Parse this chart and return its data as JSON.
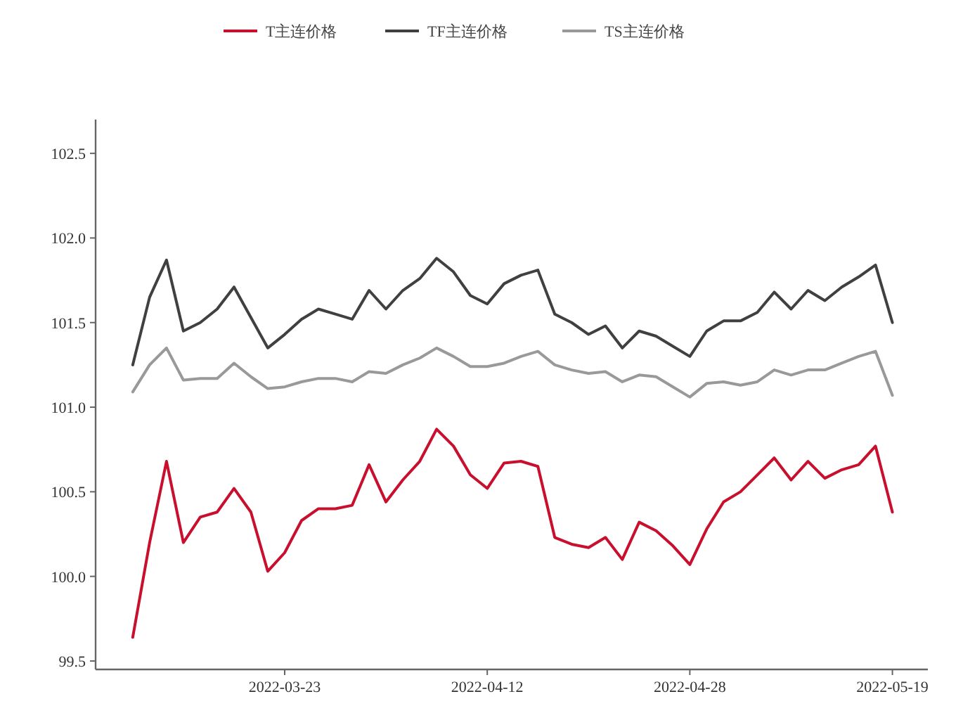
{
  "chart_data": {
    "type": "line",
    "categories": [
      null,
      null,
      null,
      null,
      null,
      null,
      null,
      null,
      null,
      "2022-03-23",
      null,
      null,
      null,
      null,
      null,
      null,
      null,
      null,
      null,
      null,
      null,
      "2022-04-12",
      null,
      null,
      null,
      null,
      null,
      null,
      null,
      null,
      null,
      null,
      null,
      "2022-04-28",
      null,
      null,
      null,
      null,
      null,
      null,
      null,
      null,
      null,
      null,
      null,
      "2022-05-19"
    ],
    "series": [
      {
        "name": "T主连价格",
        "color": "#c8102e",
        "values": [
          99.64,
          100.2,
          100.68,
          100.2,
          100.35,
          100.38,
          100.52,
          100.38,
          100.03,
          100.14,
          100.33,
          100.4,
          100.4,
          100.42,
          100.66,
          100.44,
          100.57,
          100.68,
          100.87,
          100.77,
          100.6,
          100.52,
          100.67,
          100.68,
          100.65,
          100.23,
          100.19,
          100.17,
          100.23,
          100.1,
          100.32,
          100.27,
          100.18,
          100.07,
          100.28,
          100.44,
          100.5,
          100.6,
          100.7,
          100.57,
          100.68,
          100.58,
          100.63,
          100.66,
          100.77,
          100.38
        ]
      },
      {
        "name": "TF主连价格",
        "color": "#404040",
        "values": [
          101.25,
          101.65,
          101.87,
          101.45,
          101.5,
          101.58,
          101.71,
          101.53,
          101.35,
          101.43,
          101.52,
          101.58,
          101.55,
          101.52,
          101.69,
          101.58,
          101.69,
          101.76,
          101.88,
          101.8,
          101.66,
          101.61,
          101.73,
          101.78,
          101.81,
          101.55,
          101.5,
          101.43,
          101.48,
          101.35,
          101.45,
          101.42,
          101.36,
          101.3,
          101.45,
          101.51,
          101.51,
          101.56,
          101.68,
          101.58,
          101.69,
          101.63,
          101.71,
          101.77,
          101.84,
          101.5
        ]
      },
      {
        "name": "TS主连价格",
        "color": "#999999",
        "values": [
          101.09,
          101.25,
          101.35,
          101.16,
          101.17,
          101.17,
          101.26,
          101.18,
          101.11,
          101.12,
          101.15,
          101.17,
          101.17,
          101.15,
          101.21,
          101.2,
          101.25,
          101.29,
          101.35,
          101.3,
          101.24,
          101.24,
          101.26,
          101.3,
          101.33,
          101.25,
          101.22,
          101.2,
          101.21,
          101.15,
          101.19,
          101.18,
          101.12,
          101.06,
          101.14,
          101.15,
          101.13,
          101.15,
          101.22,
          101.19,
          101.22,
          101.22,
          101.26,
          101.3,
          101.33,
          101.07
        ]
      }
    ],
    "ylim": [
      99.45,
      102.7
    ],
    "yticks": [
      99.5,
      {
        "value": 100,
        "label": "100.0"
      },
      100.5,
      {
        "value": 101,
        "label": "101.0"
      },
      101.5,
      {
        "value": 102,
        "label": "102.0"
      },
      102.5
    ],
    "grid": false,
    "legend": "top",
    "marker": "none",
    "line_style": "solid"
  }
}
